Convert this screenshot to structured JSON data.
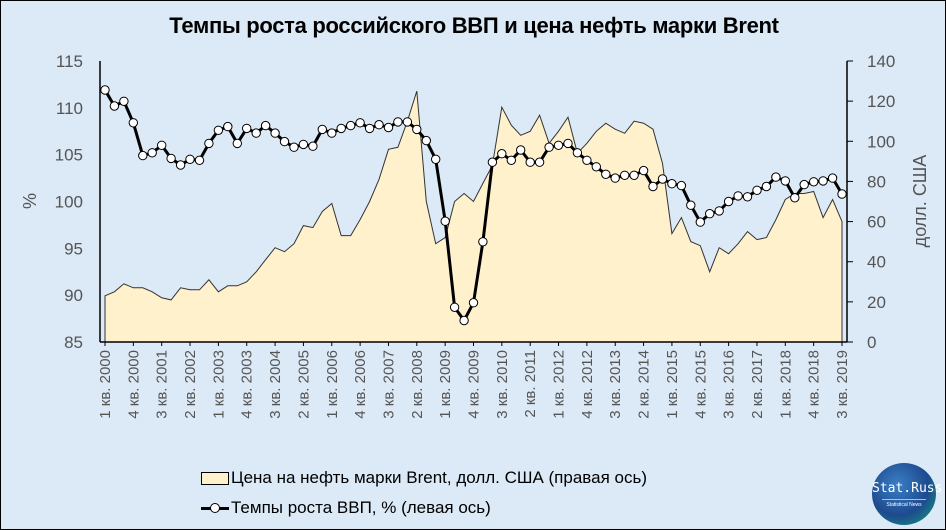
{
  "title": "Темпы роста российского ВВП и цена нефть марки Brent",
  "left_axis": {
    "label": "%",
    "ticks": [
      "115",
      "110",
      "105",
      "100",
      "95",
      "90",
      "85"
    ]
  },
  "right_axis": {
    "label": "долл. США",
    "ticks": [
      "140",
      "120",
      "100",
      "80",
      "60",
      "40",
      "20",
      "0"
    ]
  },
  "legend": {
    "brent": "Цена на нефть марки  Brent, долл. США  (правая  ось)",
    "gdp": "Темпы  роста ВВП,  % (левая ось)"
  },
  "logo": {
    "title": "Stat.Russ",
    "subtitle": "Statistical   News"
  },
  "colors": {
    "background": "#dce9f6",
    "area_fill": "#fff1cc",
    "line": "#000000",
    "marker_fill": "#ffffff"
  },
  "chart_data": {
    "type": "line+area",
    "title": "Темпы роста российского ВВП и цена нефть марки Brent",
    "x_tick_labels": [
      "1 кв. 2000",
      "4 кв. 2000",
      "3 кв. 2001",
      "2 кв. 2002",
      "1 кв. 2003",
      "4 кв. 2003",
      "3 кв. 2004",
      "2 кв. 2005",
      "1 кв. 2006",
      "4 кв. 2006",
      "3 кв. 2007",
      "2 кв. 2008",
      "1 кв. 2009",
      "4 кв. 2009",
      "3 кв. 2010",
      "2 кв. 2011",
      "1 кв. 2012",
      "4 кв. 2012",
      "3 кв. 2013",
      "2 кв. 2014",
      "1 кв. 2015",
      "4 кв. 2015",
      "3 кв. 2016",
      "2 кв. 2017",
      "1 кв. 2018",
      "4 кв. 2018",
      "3 кв. 2019"
    ],
    "x_start": "1 кв. 2000",
    "x_end": "3 кв. 2019",
    "n_points": 79,
    "left_ylim": [
      85,
      115
    ],
    "right_ylim": [
      0,
      140
    ],
    "ylabel_left": "%",
    "ylabel_right": "долл. США",
    "grid": false,
    "legend_position": "bottom",
    "series": [
      {
        "name": "Цена на нефть марки Brent, долл. США (правая ось)",
        "axis": "right",
        "type": "area",
        "values": [
          23,
          25,
          29,
          27,
          27,
          25,
          22,
          21,
          27,
          26,
          26,
          31,
          25,
          28,
          28,
          30,
          35,
          41,
          47,
          45,
          49,
          58,
          57,
          65,
          69,
          53,
          53,
          61,
          70,
          81,
          96,
          97,
          110,
          125,
          70,
          49,
          52,
          70,
          74,
          70,
          79,
          88,
          117,
          108,
          103,
          105,
          113,
          99,
          105,
          112,
          94,
          99,
          105,
          109,
          106,
          104,
          110,
          109,
          106,
          89,
          54,
          62,
          50,
          48,
          35,
          47,
          44,
          49,
          55,
          51,
          52,
          61,
          71,
          74,
          74,
          75,
          62,
          71,
          60
        ],
        "note": "approximate; quarterly average price"
      },
      {
        "name": "Темпы роста ВВП, % (левая ось)",
        "axis": "left",
        "type": "line",
        "values": [
          111.9,
          110.2,
          110.7,
          108.4,
          104.9,
          105.2,
          106.0,
          104.6,
          103.9,
          104.5,
          104.4,
          106.2,
          107.6,
          108.0,
          106.2,
          107.8,
          107.3,
          108.1,
          107.3,
          106.4,
          105.8,
          106.1,
          105.9,
          107.7,
          107.3,
          107.8,
          108.1,
          108.4,
          107.8,
          108.2,
          107.9,
          108.5,
          108.5,
          107.7,
          106.5,
          104.5,
          97.9,
          88.7,
          87.3,
          89.2,
          95.7,
          104.2,
          105.1,
          104.4,
          105.5,
          104.2,
          104.2,
          105.8,
          106.0,
          106.2,
          105.2,
          104.4,
          103.7,
          102.9,
          102.5,
          102.8,
          102.8,
          103.3,
          101.6,
          102.4,
          101.9,
          101.7,
          99.6,
          97.8,
          98.7,
          99.0,
          100.0,
          100.6,
          100.5,
          101.2,
          101.6,
          102.6,
          102.2,
          100.4,
          101.8,
          102.1,
          102.2,
          102.5,
          100.8
        ]
      }
    ]
  }
}
